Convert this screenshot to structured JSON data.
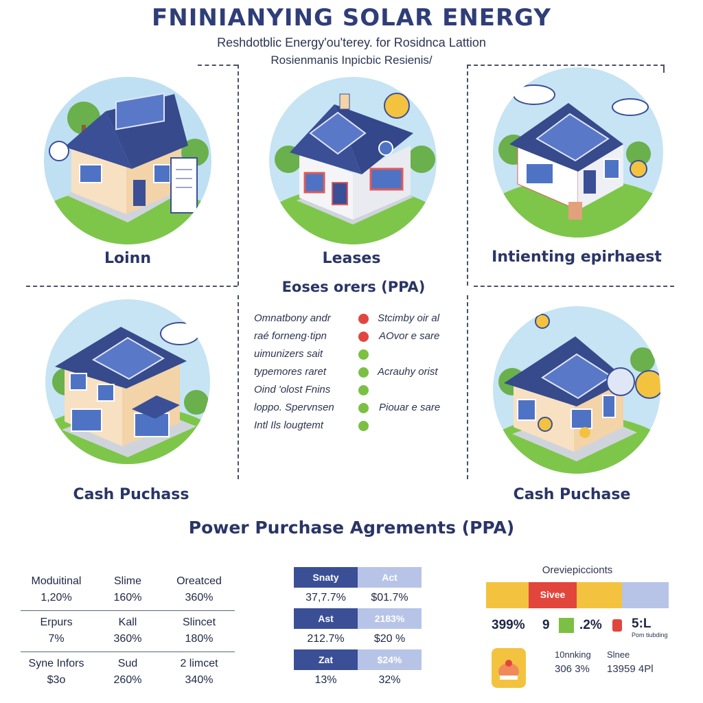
{
  "header": {
    "title": "FNINIANYING SOLAR ENERGY",
    "subtitle_line1": "Reshdotblic Energy'ou'terey. for Rosidnca Lattion",
    "subtitle_line2": "Rosienmanis Inpicbic Resienis/"
  },
  "options": [
    {
      "label": "Loinn"
    },
    {
      "label": "Leases"
    },
    {
      "label": "Intienting epirhaest"
    },
    {
      "label": "Cash Puchass"
    },
    {
      "label": "Cash Puchase"
    }
  ],
  "legend": {
    "title": "Eoses orers (PPA)",
    "left_items": [
      "Omnatbony andr",
      "raé forneng·tipn",
      "uimunizers sait",
      "typemores raret",
      "Oind 'olost Fnins",
      "loppo. Spervnsen",
      "Intl Ils lougtemt"
    ],
    "right_items": [
      "Stcimby oir al",
      "AOvor e sare",
      "Acrauhy orist",
      "Piouar e sare"
    ],
    "colors": {
      "red": "#e0463f",
      "green": "#7bc043"
    }
  },
  "ppa_section": {
    "title": "Power Purchase Agrements (PPA)"
  },
  "table1": {
    "rows": [
      {
        "cells": [
          {
            "h": "Moduitinal",
            "v": "1,20%"
          },
          {
            "h": "Slime",
            "v": "160%"
          },
          {
            "h": "Oreatced",
            "v": "360%"
          }
        ]
      },
      {
        "cells": [
          {
            "h": "Erpurs",
            "v": "7%"
          },
          {
            "h": "Kall",
            "v": "360%"
          },
          {
            "h": "Slincet",
            "v": "180%"
          }
        ]
      },
      {
        "cells": [
          {
            "h": "Syne Infors",
            "v": "$3o"
          },
          {
            "h": "Sud",
            "v": "260%"
          },
          {
            "h": "2 limcet",
            "v": "340%"
          }
        ]
      }
    ]
  },
  "table2": {
    "rows": [
      {
        "type": "header",
        "left": "Snaty",
        "right": "Act"
      },
      {
        "type": "data",
        "left": "37,7.7%",
        "right": "$01.7%"
      },
      {
        "type": "header",
        "left": "Ast",
        "right": "2183%"
      },
      {
        "type": "data",
        "left": "212.7%",
        "right": "$20 %"
      },
      {
        "type": "header",
        "left": "Zat",
        "right": "$24%"
      },
      {
        "type": "data",
        "left": "13%",
        "right": "32%"
      }
    ]
  },
  "panel3": {
    "title": "Oreviepiccionts",
    "bar_label": "Sivee",
    "bar_colors": [
      "#f3c340",
      "#e2453c",
      "#f3c340",
      "#b7c4e8"
    ],
    "stat1": "399%",
    "stat2": "9",
    "stat3": ".2%",
    "stat4": "5:L",
    "stat4_caption": "Pom tiubding",
    "small1": "10nnking",
    "small2": "Slnee",
    "small3": "306 3%",
    "small4": "13959 4Pl"
  }
}
